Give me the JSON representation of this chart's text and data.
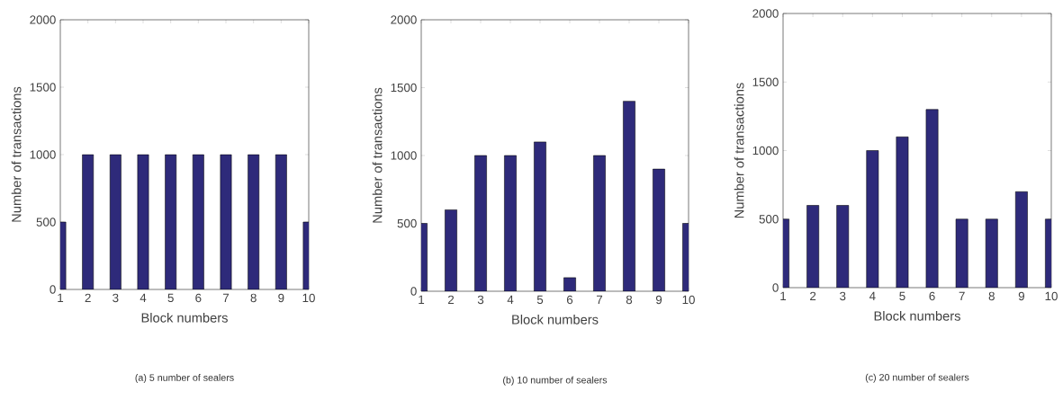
{
  "chart_data": [
    {
      "type": "bar",
      "xlabel": "Block numbers",
      "ylabel": "Number of transactions",
      "x": [
        1,
        2,
        3,
        4,
        5,
        6,
        7,
        8,
        9,
        10
      ],
      "values": [
        500,
        1000,
        1000,
        1000,
        1000,
        1000,
        1000,
        1000,
        1000,
        500
      ],
      "color": "#2e2a7a",
      "xlim": [
        1,
        10
      ],
      "ylim": [
        0,
        2000
      ],
      "xticks": [
        1,
        2,
        3,
        4,
        5,
        6,
        7,
        8,
        9,
        10
      ],
      "yticks": [
        0,
        500,
        1000,
        1500,
        2000
      ],
      "annotations": [
        "(a) 5 number of sealers"
      ]
    },
    {
      "type": "bar",
      "xlabel": "Block numbers",
      "ylabel": "Number of transactions",
      "x": [
        1,
        2,
        3,
        4,
        5,
        6,
        7,
        8,
        9,
        10
      ],
      "values": [
        500,
        600,
        1000,
        1000,
        1100,
        100,
        1000,
        1400,
        900,
        500
      ],
      "color": "#2e2a7a",
      "xlim": [
        1,
        10
      ],
      "ylim": [
        0,
        2000
      ],
      "xticks": [
        1,
        2,
        3,
        4,
        5,
        6,
        7,
        8,
        9,
        10
      ],
      "yticks": [
        0,
        500,
        1000,
        1500,
        2000
      ],
      "annotations": [
        "(b) 10 number of sealers"
      ]
    },
    {
      "type": "bar",
      "xlabel": "Block numbers",
      "ylabel": "Number of transactions",
      "x": [
        1,
        2,
        3,
        4,
        5,
        6,
        7,
        8,
        9,
        10
      ],
      "values": [
        500,
        600,
        600,
        1000,
        1100,
        1300,
        500,
        500,
        700,
        500
      ],
      "color": "#2e2a7a",
      "xlim": [
        1,
        10
      ],
      "ylim": [
        0,
        2000
      ],
      "xticks": [
        1,
        2,
        3,
        4,
        5,
        6,
        7,
        8,
        9,
        10
      ],
      "yticks": [
        0,
        500,
        1000,
        1500,
        2000
      ],
      "annotations": [
        "(c) 20 number of sealers"
      ]
    }
  ]
}
